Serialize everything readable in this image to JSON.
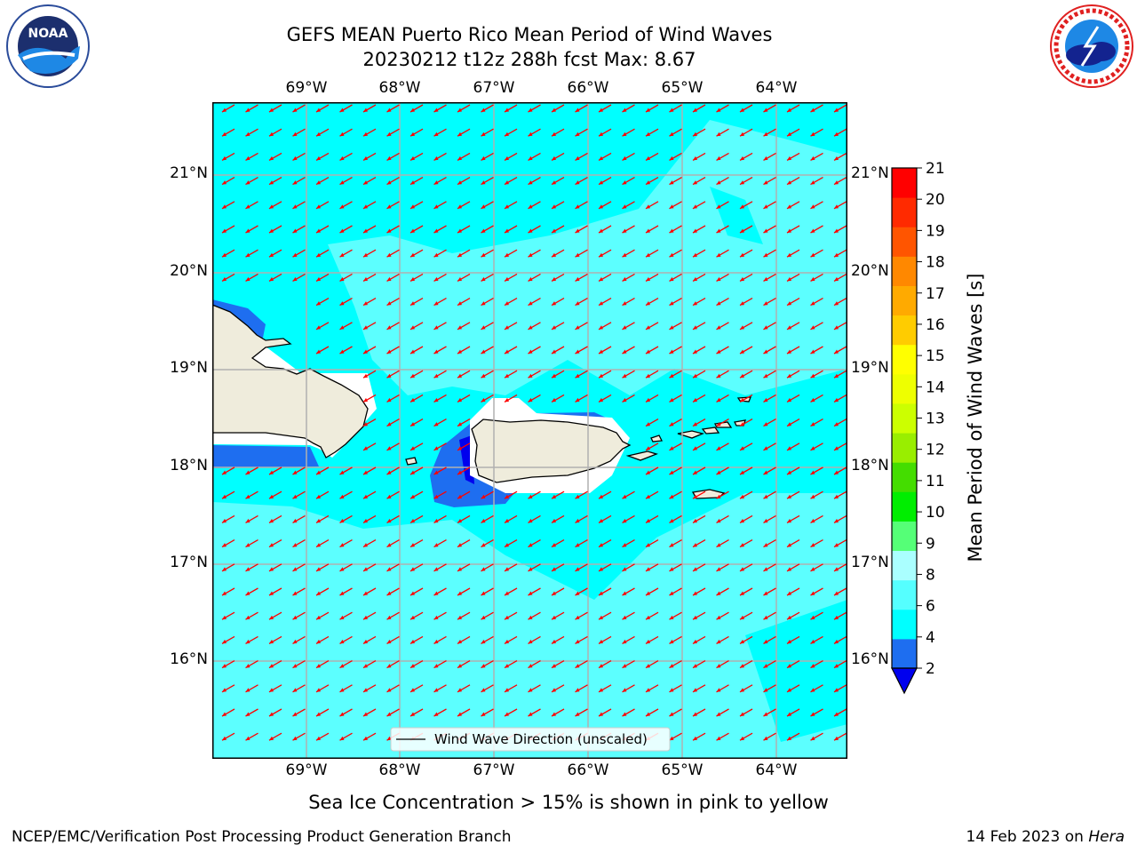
{
  "title": {
    "line1": "GEFS MEAN Puerto Rico Mean Period of Wind Waves",
    "line2": "20230212 t12z 288h fcst   Max: 8.67"
  },
  "map": {
    "lon_labels": [
      "69°W",
      "68°W",
      "67°W",
      "66°W",
      "65°W",
      "64°W"
    ],
    "lat_labels": [
      "21°N",
      "20°N",
      "19°N",
      "18°N",
      "17°N",
      "16°N"
    ],
    "legend_label": "Wind Wave Direction (unscaled)",
    "arrow_color": "#ff0000",
    "land_color": "#efecdc",
    "grid_color": "#b0b0b0"
  },
  "colorbar": {
    "label": "Mean Period of Wind Waves [s]",
    "ticks": [
      "2",
      "4",
      "6",
      "8",
      "9",
      "10",
      "11",
      "12",
      "13",
      "14",
      "15",
      "16",
      "17",
      "18",
      "19",
      "20",
      "21"
    ],
    "colors": [
      "#1e6ef0",
      "#00ffff",
      "#55ffff",
      "#aaffff",
      "#55ff77",
      "#00ee00",
      "#44dd00",
      "#99ee00",
      "#ccff00",
      "#eeff00",
      "#ffff00",
      "#ffcc00",
      "#ffaa00",
      "#ff8800",
      "#ff5500",
      "#ff2a00",
      "#ff0000"
    ],
    "under_color": "#0000ee"
  },
  "subtitle": "Sea Ice Concentration > 15% is shown in pink to yellow",
  "footer": {
    "left": "NCEP/EMC/Verification Post Processing Product Generation Branch",
    "right_date": "14 Feb 2023 on ",
    "right_host": "Hera"
  },
  "logos": {
    "noaa_text": "NOAA",
    "nws_text": "NATIONAL WEATHER SERVICE"
  }
}
